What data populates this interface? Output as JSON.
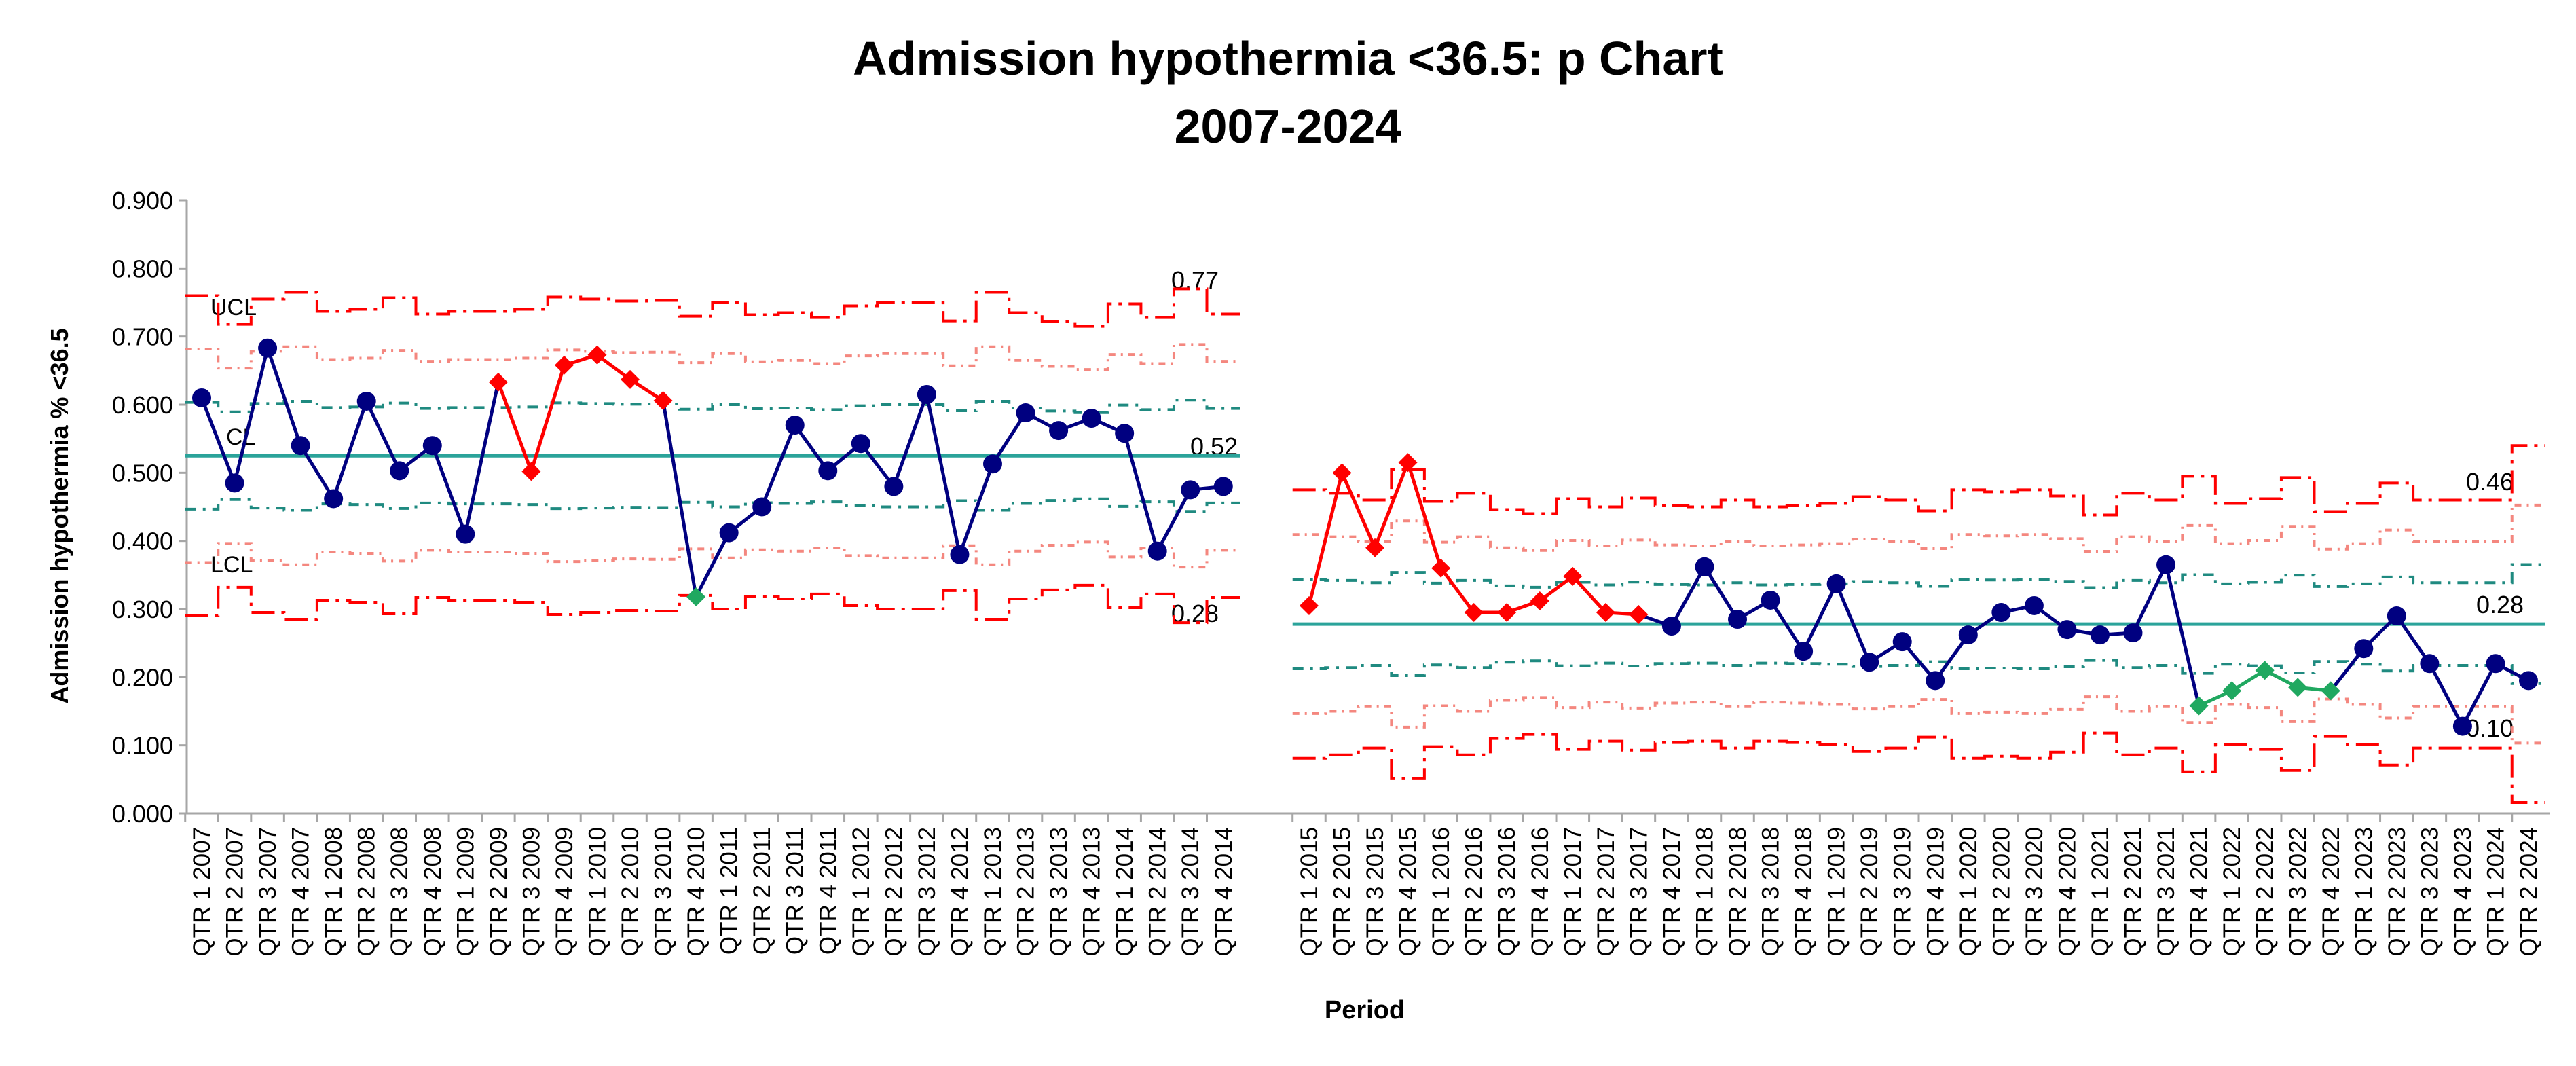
{
  "colors": {
    "limits_outer": "#FF0000",
    "limits_inner": "#F4877F",
    "limits_sigma1": "#1F8A80",
    "centre": "#2AA39A",
    "in_control": "#000080",
    "above": "#FF0000",
    "below": "#20A860",
    "axis": "#A6A6A6"
  },
  "chart_data": {
    "type": "line",
    "chart_kind": "p chart",
    "title": "Admission hypothermia <36.5: p Chart",
    "subtitle": "2007-2024",
    "xlabel": "Period",
    "ylabel": "Admission hypothermia % <36.5",
    "ylim": [
      0,
      0.9
    ],
    "y_ticks": [
      "0.000",
      "0.100",
      "0.200",
      "0.300",
      "0.400",
      "0.500",
      "0.600",
      "0.700",
      "0.800",
      "0.900"
    ],
    "grid": false,
    "legend": "none",
    "line_labels": [
      "UCL",
      "CL",
      "LCL"
    ],
    "categories": [
      "QTR 1 2007",
      "QTR 2 2007",
      "QTR 3 2007",
      "QTR 4 2007",
      "QTR 1 2008",
      "QTR 2 2008",
      "QTR 3 2008",
      "QTR 4 2008",
      "QTR 1 2009",
      "QTR 2 2009",
      "QTR 3 2009",
      "QTR 4 2009",
      "QTR 1 2010",
      "QTR 2 2010",
      "QTR 3 2010",
      "QTR 4 2010",
      "QTR 1 2011",
      "QTR 2 2011",
      "QTR 3 2011",
      "QTR 4 2011",
      "QTR 1 2012",
      "QTR 2 2012",
      "QTR 3 2012",
      "QTR 4 2012",
      "QTR 1 2013",
      "QTR 2 2013",
      "QTR 3 2013",
      "QTR 4 2013",
      "QTR 1 2014",
      "QTR 2 2014",
      "QTR 3 2014",
      "QTR 4 2014",
      "QTR 1 2015",
      "QTR 2 2015",
      "QTR 3 2015",
      "QTR 4 2015",
      "QTR 1 2016",
      "QTR 2 2016",
      "QTR 3 2016",
      "QTR 4 2016",
      "QTR 1 2017",
      "QTR 2 2017",
      "QTR 3 2017",
      "QTR 4 2017",
      "QTR 1 2018",
      "QTR 2 2018",
      "QTR 3 2018",
      "QTR 4 2018",
      "QTR 1 2019",
      "QTR 2 2019",
      "QTR 3 2019",
      "QTR 4 2019",
      "QTR 1 2020",
      "QTR 2 2020",
      "QTR 3 2020",
      "QTR 4 2020",
      "QTR 1 2021",
      "QTR 2 2021",
      "QTR 3 2021",
      "QTR 4 2021",
      "QTR 1 2022",
      "QTR 2 2022",
      "QTR 3 2022",
      "QTR 4 2022",
      "QTR 1 2023",
      "QTR 2 2023",
      "QTR 3 2023",
      "QTR 4 2023",
      "QTR 1 2024",
      "QTR 2 2024"
    ],
    "gap_after_index": 31,
    "values": [
      0.61,
      0.485,
      0.683,
      0.54,
      0.462,
      0.605,
      0.503,
      0.54,
      0.41,
      0.633,
      0.502,
      0.658,
      0.673,
      0.637,
      0.606,
      0.318,
      0.412,
      0.45,
      0.57,
      0.503,
      0.543,
      0.48,
      0.615,
      0.38,
      0.513,
      0.588,
      0.562,
      0.58,
      0.558,
      0.385,
      0.475,
      0.48,
      0.305,
      0.5,
      0.39,
      0.515,
      0.36,
      0.295,
      0.295,
      0.312,
      0.348,
      0.295,
      0.292,
      0.275,
      0.362,
      0.285,
      0.313,
      0.238,
      0.337,
      0.222,
      0.252,
      0.195,
      0.262,
      0.295,
      0.305,
      0.27,
      0.262,
      0.265,
      0.365,
      0.158,
      0.18,
      0.21,
      0.185,
      0.18,
      0.242,
      0.29,
      0.22,
      0.128,
      0.22,
      0.195
    ],
    "point_status": [
      "in",
      "in",
      "in",
      "in",
      "in",
      "in",
      "in",
      "in",
      "in",
      "above",
      "above",
      "above",
      "above",
      "above",
      "above",
      "below",
      "in",
      "in",
      "in",
      "in",
      "in",
      "in",
      "in",
      "in",
      "in",
      "in",
      "in",
      "in",
      "in",
      "in",
      "in",
      "in",
      "above",
      "above",
      "above",
      "above",
      "above",
      "above",
      "above",
      "above",
      "above",
      "above",
      "above",
      "in",
      "in",
      "in",
      "in",
      "in",
      "in",
      "in",
      "in",
      "in",
      "in",
      "in",
      "in",
      "in",
      "in",
      "in",
      "in",
      "below",
      "below",
      "below",
      "below",
      "below",
      "in",
      "in",
      "in",
      "in",
      "in",
      "in"
    ],
    "centre_line": [
      0.525,
      0.278
    ],
    "ucl": [
      0.76,
      0.718,
      0.755,
      0.765,
      0.737,
      0.74,
      0.757,
      0.733,
      0.737,
      0.737,
      0.74,
      0.758,
      0.755,
      0.752,
      0.753,
      0.73,
      0.75,
      0.732,
      0.735,
      0.728,
      0.745,
      0.75,
      0.75,
      0.723,
      0.765,
      0.735,
      0.722,
      0.715,
      0.748,
      0.728,
      0.77,
      0.733,
      0.475,
      0.47,
      0.46,
      0.505,
      0.458,
      0.47,
      0.446,
      0.44,
      0.462,
      0.45,
      0.463,
      0.452,
      0.45,
      0.46,
      0.45,
      0.452,
      0.455,
      0.465,
      0.46,
      0.444,
      0.475,
      0.472,
      0.475,
      0.466,
      0.438,
      0.47,
      0.46,
      0.495,
      0.455,
      0.462,
      0.493,
      0.443,
      0.455,
      0.485,
      0.46,
      0.46,
      0.46,
      0.54
    ],
    "lcl": [
      0.29,
      0.332,
      0.295,
      0.285,
      0.313,
      0.31,
      0.293,
      0.317,
      0.313,
      0.313,
      0.31,
      0.292,
      0.295,
      0.298,
      0.297,
      0.32,
      0.3,
      0.318,
      0.315,
      0.322,
      0.305,
      0.3,
      0.3,
      0.327,
      0.285,
      0.315,
      0.328,
      0.335,
      0.302,
      0.322,
      0.28,
      0.317,
      0.081,
      0.086,
      0.096,
      0.051,
      0.098,
      0.086,
      0.11,
      0.116,
      0.094,
      0.106,
      0.093,
      0.104,
      0.106,
      0.096,
      0.106,
      0.104,
      0.101,
      0.091,
      0.096,
      0.112,
      0.081,
      0.084,
      0.081,
      0.09,
      0.118,
      0.086,
      0.096,
      0.061,
      0.101,
      0.094,
      0.063,
      0.113,
      0.101,
      0.071,
      0.096,
      0.096,
      0.096,
      0.016
    ],
    "annotations": {
      "first_ucl": "0.77",
      "first_cl": "0.52",
      "first_lcl": "0.28",
      "second_ucl": "0.46",
      "second_cl": "0.28",
      "second_lcl": "0.10"
    }
  }
}
